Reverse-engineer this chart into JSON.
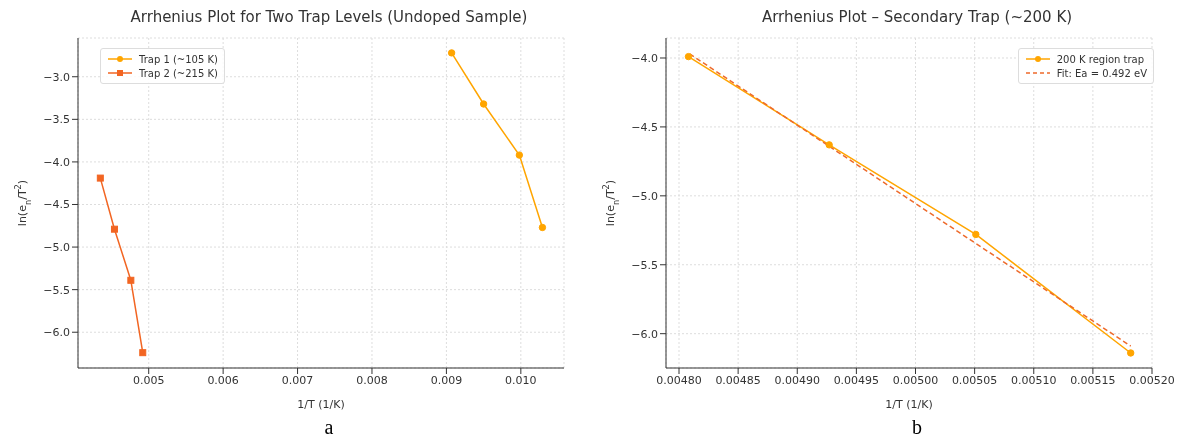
{
  "chart_data": [
    {
      "type": "line",
      "title": "Arrhenius Plot for Two Trap Levels (Undoped Sample)",
      "xlabel": "1/T (1/K)",
      "ylabel": "ln(e$_{n}$/T$^{2}$)",
      "annotations": [
        "a"
      ],
      "xlim": [
        0.00405,
        0.01058
      ],
      "ylim": [
        -6.42,
        -2.545
      ],
      "xticks": [
        {
          "value": 0.005,
          "label": "0.005"
        },
        {
          "value": 0.006,
          "label": "0.006"
        },
        {
          "value": 0.007,
          "label": "0.007"
        },
        {
          "value": 0.008,
          "label": "0.008"
        },
        {
          "value": 0.009,
          "label": "0.009"
        },
        {
          "value": 0.01,
          "label": "0.010"
        }
      ],
      "yticks": [
        {
          "value": -3,
          "label": "−3.0"
        },
        {
          "value": -3.5,
          "label": "−3.5"
        },
        {
          "value": -4,
          "label": "−4.0"
        },
        {
          "value": -4.5,
          "label": "−4.5"
        },
        {
          "value": -5,
          "label": "−5.0"
        },
        {
          "value": -5.5,
          "label": "−5.5"
        },
        {
          "value": -6,
          "label": "−6.0"
        }
      ],
      "grid": true,
      "legend": "top left",
      "line_style": "solid",
      "series": [
        {
          "name": "Trap 1 (~105 K)",
          "color": "#ffa500",
          "marker": "circle",
          "x": [
            0.00907,
            0.0095,
            0.00998,
            0.01029
          ],
          "values": [
            -2.72,
            -3.32,
            -3.92,
            -4.77
          ]
        },
        {
          "name": "Trap 2 (~215 K)",
          "color": "#f26522",
          "marker": "square",
          "x": [
            0.00435,
            0.00454,
            0.00476,
            0.00492
          ],
          "values": [
            -4.19,
            -4.79,
            -5.39,
            -6.24
          ]
        }
      ]
    },
    {
      "type": "line",
      "title": "Arrhenius Plot – Secondary Trap (~200 K)",
      "xlabel": "1/T (1/K)",
      "ylabel": "ln(e$_{n}$/T$^{2}$)",
      "annotations": [
        "b"
      ],
      "xlim": [
        0.004789,
        0.0052
      ],
      "ylim": [
        -6.249,
        -3.855
      ],
      "xticks": [
        {
          "value": 0.0048,
          "label": "0.00480"
        },
        {
          "value": 0.00485,
          "label": "0.00485"
        },
        {
          "value": 0.0049,
          "label": "0.00490"
        },
        {
          "value": 0.00495,
          "label": "0.00495"
        },
        {
          "value": 0.005,
          "label": "0.00500"
        },
        {
          "value": 0.00505,
          "label": "0.00505"
        },
        {
          "value": 0.0051,
          "label": "0.00510"
        },
        {
          "value": 0.00515,
          "label": "0.00515"
        },
        {
          "value": 0.0052,
          "label": "0.00520"
        }
      ],
      "yticks": [
        {
          "value": -4,
          "label": "−4.0"
        },
        {
          "value": -4.5,
          "label": "−4.5"
        },
        {
          "value": -5,
          "label": "−5.0"
        },
        {
          "value": -5.5,
          "label": "−5.5"
        },
        {
          "value": -6,
          "label": "−6.0"
        }
      ],
      "grid": true,
      "legend": "top right",
      "series": [
        {
          "name": "200 K region trap",
          "color": "#ffa500",
          "marker": "circle",
          "line_style": "solid",
          "x": [
            0.004808,
            0.004927,
            0.005051,
            0.005182
          ],
          "values": [
            -3.99,
            -4.63,
            -5.28,
            -6.14
          ]
        },
        {
          "name": "Fit: Ea = 0.492 eV",
          "color": "#ee6a2b",
          "marker": "none",
          "line_style": "dashed",
          "x": [
            0.004809,
            0.005182
          ],
          "values": [
            -3.97,
            -6.09
          ]
        }
      ]
    }
  ]
}
